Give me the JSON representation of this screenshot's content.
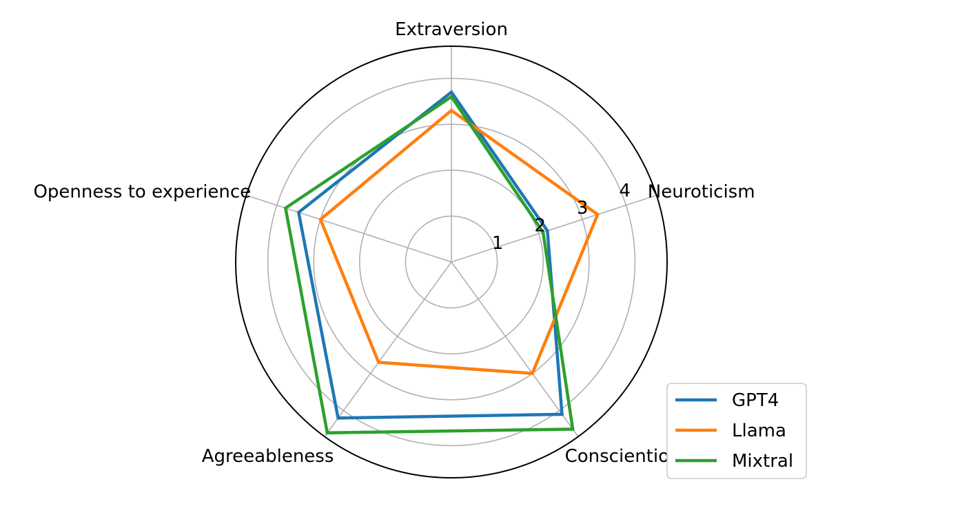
{
  "chart_data": {
    "type": "radar",
    "title": "",
    "categories": [
      "Neuroticism",
      "Extraversion",
      "Openness to experience",
      "Agreeableness",
      "Conscientiousness"
    ],
    "r_ticks": [
      {
        "value": 1,
        "label": "1"
      },
      {
        "value": 2,
        "label": "2"
      },
      {
        "value": 3,
        "label": "3"
      },
      {
        "value": 4,
        "label": "4"
      }
    ],
    "rlim": [
      0,
      4.7
    ],
    "grid": true,
    "legend_position": "lower-right",
    "series": [
      {
        "name": "GPT4",
        "color": "#1f77b4",
        "values": [
          2.2,
          3.7,
          3.5,
          4.2,
          4.1
        ]
      },
      {
        "name": "Llama",
        "color": "#ff7f0e",
        "values": [
          3.35,
          3.3,
          3.0,
          2.7,
          3.0
        ]
      },
      {
        "name": "Mixtral",
        "color": "#2ca02c",
        "values": [
          2.1,
          3.6,
          3.8,
          4.6,
          4.5
        ]
      }
    ]
  }
}
